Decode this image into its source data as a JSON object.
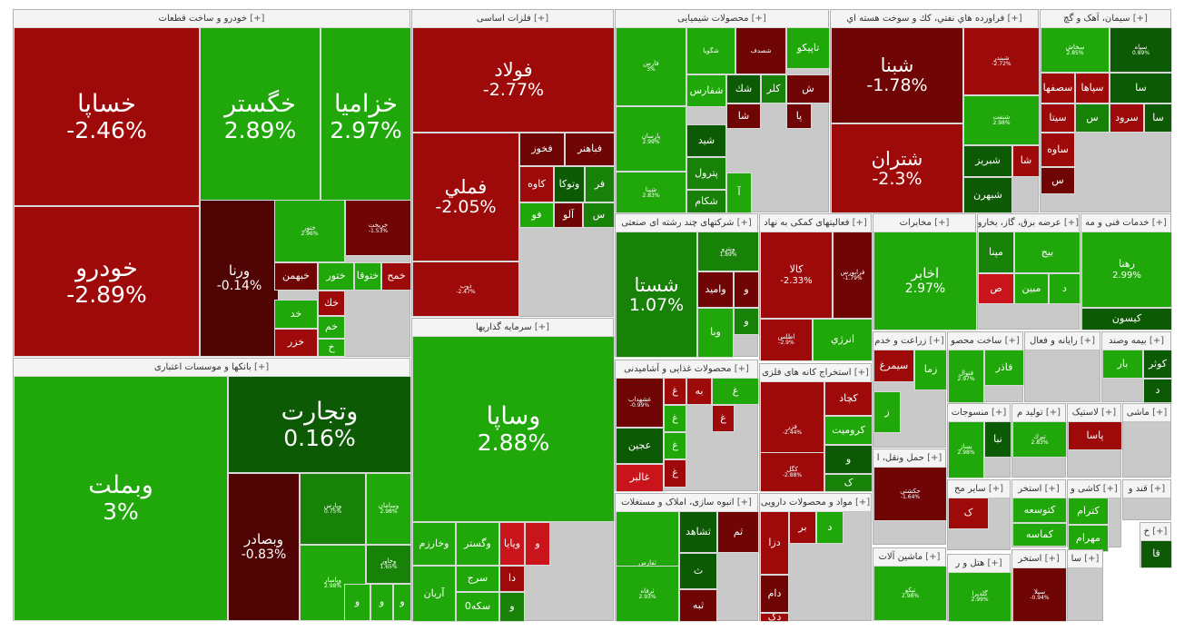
{
  "colors": {
    "strong_green": "#20a80b",
    "green": "#178108",
    "dark_green": "#0d5a05",
    "red": "#c8141a",
    "strong_red": "#9e0a0a",
    "dark_red": "#6f0505",
    "darkest_red": "#4f0303"
  },
  "sectors": [
    {
      "title": "خودرو و ساخت قطعات",
      "expand": "[+]",
      "tiles": [
        {
          "name": "خساپا",
          "change": "-2.46%"
        },
        {
          "name": "خگستر",
          "change": "2.89%"
        },
        {
          "name": "خزامیا",
          "change": "2.97%"
        },
        {
          "name": "خودرو",
          "change": "-2.89%"
        },
        {
          "name": "ورنا",
          "change": "-0.14%"
        },
        {
          "name": "ختور",
          "change": "2.96%"
        },
        {
          "name": "خریخت",
          "change": "-1.53%"
        },
        {
          "name": "خبهمن"
        },
        {
          "name": "ختور"
        },
        {
          "name": "ختوقا"
        },
        {
          "name": "خمح"
        },
        {
          "name": "خك"
        },
        {
          "name": "خم"
        },
        {
          "name": "خ"
        },
        {
          "name": "خد"
        },
        {
          "name": "خزر"
        }
      ]
    },
    {
      "title": "بانکها و موسسات اعتباری",
      "expand": "[+]",
      "tiles": [
        {
          "name": "وبملت",
          "change": "3%"
        },
        {
          "name": "وتجارت",
          "change": "0.16%"
        },
        {
          "name": "وبصادر",
          "change": "-0.83%"
        },
        {
          "name": "وپارس",
          "change": "0.75%"
        },
        {
          "name": "وسامان",
          "change": "2.98%"
        },
        {
          "name": "وخاور",
          "change": "1.65%"
        },
        {
          "name": "وپاسار",
          "change": "2.98%"
        },
        {
          "name": "و"
        },
        {
          "name": "و"
        },
        {
          "name": "و"
        }
      ]
    },
    {
      "title": "فلزات اساسی",
      "expand": "[+]",
      "tiles": [
        {
          "name": "فولاد",
          "change": "-2.77%"
        },
        {
          "name": "فملي",
          "change": "-2.05%"
        },
        {
          "name": "ذوب",
          "change": "-2.47%"
        },
        {
          "name": "فخوز"
        },
        {
          "name": "فباهنر"
        },
        {
          "name": "کاوه"
        },
        {
          "name": "وتوكا"
        },
        {
          "name": "فر"
        },
        {
          "name": "فو"
        },
        {
          "name": "آلو"
        },
        {
          "name": "س"
        }
      ]
    },
    {
      "title": "سرمایه گذاریها",
      "expand": "[+]",
      "tiles": [
        {
          "name": "وساپا",
          "change": "2.88%"
        },
        {
          "name": "وخارزم"
        },
        {
          "name": "وگستر"
        },
        {
          "name": "ويايا"
        },
        {
          "name": "و"
        },
        {
          "name": "آريان"
        },
        {
          "name": "سرج"
        },
        {
          "name": "دا"
        },
        {
          "name": "سكه0"
        },
        {
          "name": "و"
        }
      ]
    },
    {
      "title": "محصولات شیمیایی",
      "expand": "[+]",
      "tiles": [
        {
          "name": "فارس",
          "change": "3%"
        },
        {
          "name": "پارسان",
          "change": "2.99%"
        },
        {
          "name": "شپنا",
          "change": "2.83%"
        },
        {
          "name": "شفارس"
        },
        {
          "name": "شيد"
        },
        {
          "name": "پترول"
        },
        {
          "name": "شکام"
        },
        {
          "name": "تاپيکو"
        },
        {
          "name": "شك"
        },
        {
          "name": "کلر"
        },
        {
          "name": "ش"
        },
        {
          "name": "شا"
        },
        {
          "name": "پا"
        },
        {
          "name": "آ"
        },
        {
          "name": "شگویا"
        },
        {
          "name": "شصدف"
        }
      ]
    },
    {
      "title": "فراورده هاي نفتي، كك و سوخت هسته اي",
      "expand": "[+]",
      "tiles": [
        {
          "name": "شبنا",
          "change": "-1.78%"
        },
        {
          "name": "شتران",
          "change": "-2.3%"
        },
        {
          "name": "شبندر",
          "change": "-2.72%"
        },
        {
          "name": "شنفت",
          "change": "2.98%"
        },
        {
          "name": "شبريز"
        },
        {
          "name": "شا"
        },
        {
          "name": "شبهرن"
        }
      ]
    },
    {
      "title": "سیمان، آهک و گچ",
      "expand": "[+]",
      "tiles": [
        {
          "name": "سخاش",
          "change": "2.85%"
        },
        {
          "name": "سپاه",
          "change": "0.89%"
        },
        {
          "name": "سصفها"
        },
        {
          "name": "سپاها"
        },
        {
          "name": "سا"
        },
        {
          "name": "سيتا"
        },
        {
          "name": "س"
        },
        {
          "name": "سرود"
        },
        {
          "name": "سا"
        },
        {
          "name": "ساوه"
        },
        {
          "name": "س"
        }
      ]
    },
    {
      "title": "شرکتهای چند رشته ای صنعتی",
      "expand": "[+]",
      "tiles": [
        {
          "name": "شستا",
          "change": "1.07%"
        },
        {
          "name": "وپترو",
          "change": "1.89%"
        },
        {
          "name": "واميد"
        },
        {
          "name": "و"
        },
        {
          "name": "وبا"
        },
        {
          "name": "و"
        }
      ]
    },
    {
      "title": "فعالیتهای کمکی به نهاد",
      "expand": "[+]",
      "tiles": [
        {
          "name": "کالا",
          "change": "-2.33%"
        },
        {
          "name": "فرابورس",
          "change": "-1.79%"
        },
        {
          "name": "اطلس",
          "change": "-2.9%"
        },
        {
          "name": "انرژي"
        }
      ]
    },
    {
      "title": "مخابرات",
      "expand": "[+]",
      "tiles": [
        {
          "name": "اخابر",
          "change": "2.97%"
        }
      ]
    },
    {
      "title": "عرضه برق، گاز، بخارو",
      "expand": "[+]",
      "tiles": [
        {
          "name": "بيج"
        },
        {
          "name": "مپنا"
        },
        {
          "name": "مبين"
        },
        {
          "name": "ص"
        },
        {
          "name": "د"
        }
      ]
    },
    {
      "title": "خدمات فنی و مه",
      "expand": "[+]",
      "tiles": [
        {
          "name": "رهنا",
          "change": "2.99%"
        },
        {
          "name": "کيسون"
        }
      ]
    },
    {
      "title": "محصولات غذایی و آشامیدنی",
      "expand": "[+]",
      "tiles": [
        {
          "name": "غشهداب",
          "change": "-0.99%"
        },
        {
          "name": "غ"
        },
        {
          "name": "به"
        },
        {
          "name": "غ"
        },
        {
          "name": "غ"
        },
        {
          "name": "غ"
        },
        {
          "name": "عجين"
        },
        {
          "name": "غ"
        },
        {
          "name": "غالبر"
        },
        {
          "name": "غ"
        }
      ]
    },
    {
      "title": "استخراج کانه های فلزی",
      "expand": "[+]",
      "tiles": [
        {
          "name": "فزر",
          "change": "-2.44%"
        },
        {
          "name": "كچاد"
        },
        {
          "name": "کروميت"
        },
        {
          "name": "كگل",
          "change": "-2.88%"
        },
        {
          "name": "و"
        },
        {
          "name": "ک"
        }
      ]
    },
    {
      "title": "انبوه سازی، املاک و مستغلات",
      "expand": "[+]",
      "tiles": [
        {
          "name": "ثفارس",
          "change": "2.99%"
        },
        {
          "name": "ثشاهد"
        },
        {
          "name": "ثم"
        },
        {
          "name": "ث"
        },
        {
          "name": "ثبه"
        },
        {
          "name": "ثرفاه",
          "change": "2.93%"
        }
      ]
    },
    {
      "title": "مواد و محصولات دارویی",
      "expand": "[+]",
      "tiles": [
        {
          "name": "دزا"
        },
        {
          "name": "بر"
        },
        {
          "name": "د"
        },
        {
          "name": "دام"
        },
        {
          "name": "دک"
        }
      ]
    },
    {
      "title": "زراعت و خدم",
      "expand": "[+]",
      "tiles": [
        {
          "name": "زما"
        },
        {
          "name": "سيمرغ"
        },
        {
          "name": "ز"
        }
      ]
    },
    {
      "title": "ساخت محصو",
      "expand": "[+]",
      "tiles": [
        {
          "name": "فاذر"
        },
        {
          "name": "فنوال",
          "change": "2.97%"
        }
      ]
    },
    {
      "title": "رایانه و فعال",
      "expand": "[+]",
      "tiles": []
    },
    {
      "title": "بیمه وصند",
      "expand": "[+]",
      "tiles": [
        {
          "name": "كوثر"
        },
        {
          "name": "بار"
        },
        {
          "name": "د"
        }
      ]
    },
    {
      "title": "حمل ونقل، ا",
      "expand": "[+]",
      "tiles": [
        {
          "name": "حكشتي",
          "change": "-1.64%"
        }
      ]
    },
    {
      "title": "منسوجات",
      "expand": "[+]",
      "tiles": [
        {
          "name": "نبا"
        },
        {
          "name": "نساز",
          "change": "2.98%"
        }
      ]
    },
    {
      "title": "تولید م",
      "expand": "[+]",
      "tiles": [
        {
          "name": "تبرك",
          "change": "2.83%"
        }
      ]
    },
    {
      "title": "لاستیک",
      "expand": "[+]",
      "tiles": [
        {
          "name": "پاسا"
        }
      ]
    },
    {
      "title": "ماشی",
      "expand": "[+]",
      "tiles": []
    },
    {
      "title": "سایر مح",
      "expand": "[+]",
      "tiles": [
        {
          "name": "ک"
        }
      ]
    },
    {
      "title": "استخر",
      "expand": "[+]",
      "tiles": [
        {
          "name": "کتوسعه"
        },
        {
          "name": "کماسه"
        }
      ]
    },
    {
      "title": "کاشی و",
      "expand": "[+]",
      "tiles": [
        {
          "name": "کترام"
        },
        {
          "name": "مهرام"
        }
      ]
    },
    {
      "title": "قند و",
      "expand": "[+]",
      "tiles": []
    },
    {
      "title": "ماشین آلات",
      "expand": "[+]",
      "tiles": [
        {
          "name": "تپکو",
          "change": "2.98%"
        }
      ]
    },
    {
      "title": "هتل و ر",
      "expand": "[+]",
      "tiles": [
        {
          "name": "گلدیرا",
          "change": "2.99%"
        }
      ]
    },
    {
      "title": "استخر",
      "expand": "[+]",
      "tiles": [
        {
          "name": "سیلا",
          "change": "-0.94%"
        }
      ]
    },
    {
      "title": "سا",
      "expand": "[+]",
      "tiles": []
    },
    {
      "title": "خ",
      "expand": "[+]",
      "tiles": [
        {
          "name": "قا"
        }
      ]
    }
  ]
}
